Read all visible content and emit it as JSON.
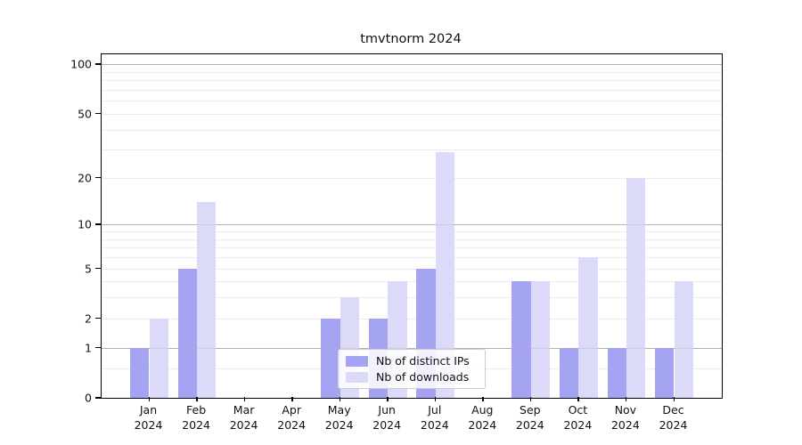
{
  "title": "tmvtnorm 2024",
  "chart_data": {
    "type": "bar",
    "title": "tmvtnorm 2024",
    "xlabel": "",
    "ylabel": "",
    "scale": "log1p",
    "categories": [
      "Jan",
      "Feb",
      "Mar",
      "Apr",
      "May",
      "Jun",
      "Jul",
      "Aug",
      "Sep",
      "Oct",
      "Nov",
      "Dec"
    ],
    "category_year": "2024",
    "series": [
      {
        "name": "Nb of distinct IPs",
        "color": "#a5a4f3",
        "values": [
          1,
          5,
          0,
          0,
          2,
          2,
          5,
          0,
          4,
          1,
          1,
          1
        ]
      },
      {
        "name": "Nb of downloads",
        "color": "#dbdaf9",
        "values": [
          2,
          14,
          0,
          0,
          3,
          4,
          29,
          0,
          4,
          6,
          20,
          4
        ]
      }
    ],
    "yticks": [
      0,
      1,
      2,
      5,
      10,
      20,
      50,
      100
    ],
    "minor_gridlines": [
      0.5,
      2,
      3,
      4,
      5,
      6,
      7,
      8,
      9,
      20,
      30,
      40,
      50,
      60,
      70,
      80,
      90
    ],
    "major_gridlines": [
      1,
      10,
      100
    ],
    "ylim": [
      0,
      115
    ],
    "grid": true,
    "legend_position": "lower center"
  }
}
